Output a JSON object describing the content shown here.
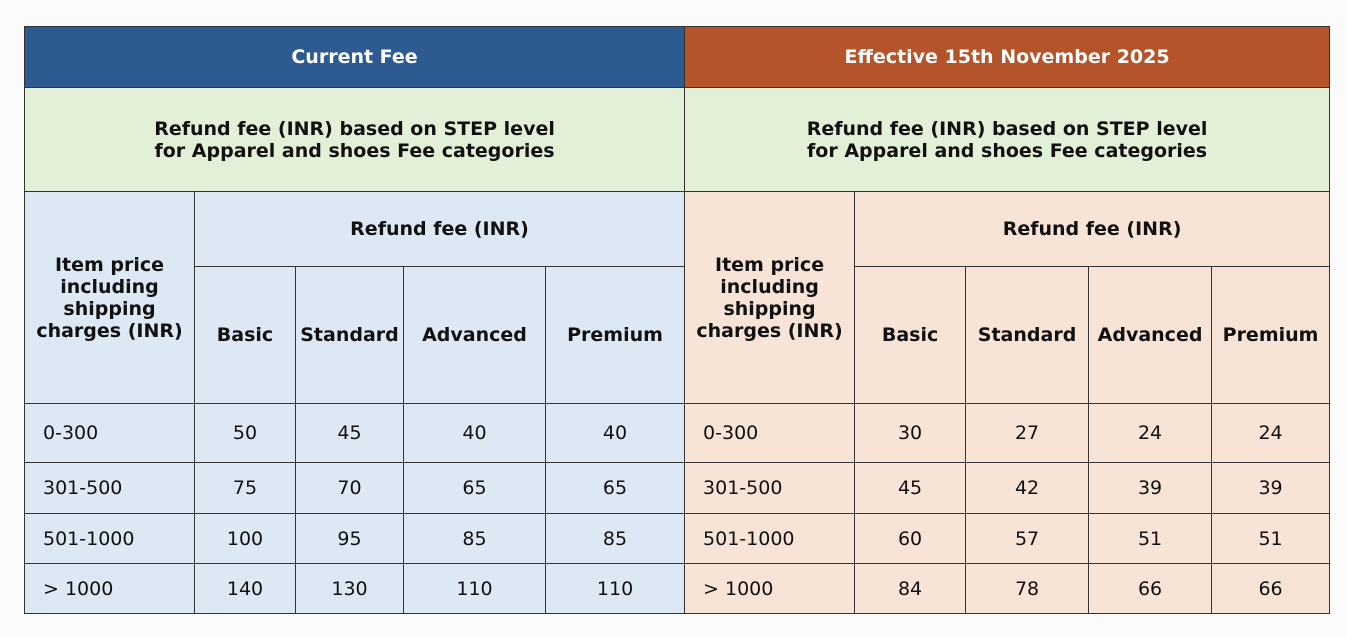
{
  "current": {
    "title": "Current Fee",
    "subtitle": [
      "Refund fee (INR)  based on STEP level",
      "for Apparel and shoes Fee categories"
    ],
    "price_header": [
      "Item price",
      "including",
      "shipping",
      "charges (INR)"
    ],
    "fee_header": "Refund fee (INR)",
    "levels": [
      "Basic",
      "Standard",
      "Advanced",
      "Premium"
    ],
    "rows": [
      [
        "0-300",
        50,
        45,
        40,
        40
      ],
      [
        "301-500",
        75,
        70,
        65,
        65
      ],
      [
        "501-1000",
        100,
        95,
        85,
        85
      ],
      [
        "> 1000",
        140,
        130,
        110,
        110
      ]
    ]
  },
  "effective": {
    "title": "Effective 15th November 2025",
    "subtitle": [
      "Refund fee (INR)  based on STEP level",
      "for Apparel and shoes Fee categories"
    ],
    "price_header": [
      "Item price",
      "including",
      "shipping",
      "charges (INR)"
    ],
    "fee_header": "Refund fee (INR)",
    "levels": [
      "Basic",
      "Standard",
      "Advanced",
      "Premium"
    ],
    "rows": [
      [
        "0-300",
        30,
        27,
        24,
        24
      ],
      [
        "301-500",
        45,
        42,
        39,
        39
      ],
      [
        "501-1000",
        60,
        57,
        51,
        51
      ],
      [
        "> 1000",
        84,
        78,
        66,
        66
      ]
    ]
  }
}
